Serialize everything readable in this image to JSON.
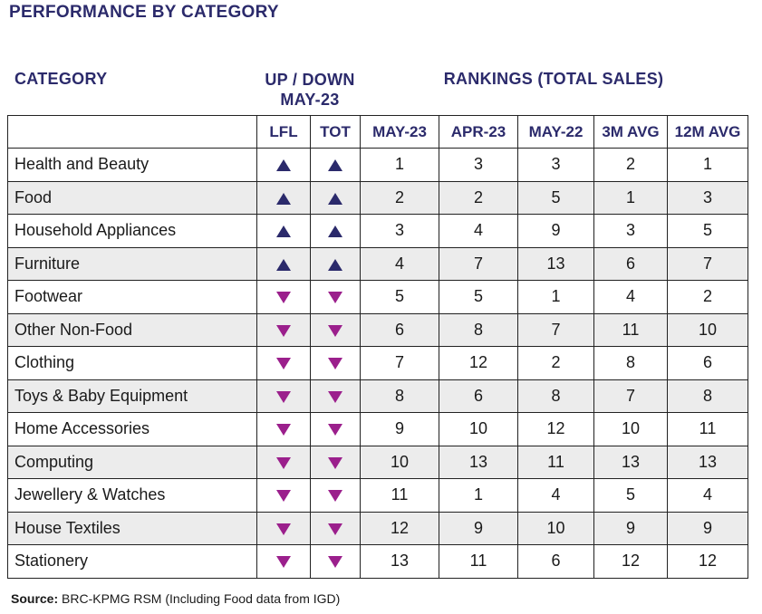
{
  "title": "PERFORMANCE BY CATEGORY",
  "headers": {
    "category": "CATEGORY",
    "up_down_line1": "UP / DOWN",
    "up_down_line2": "MAY-23",
    "rankings": "RANKINGS (TOTAL SALES)"
  },
  "columns": [
    "",
    "LFL",
    "TOT",
    "MAY-23",
    "APR-23",
    "MAY-22",
    "3M AVG",
    "12M AVG"
  ],
  "colors": {
    "up": "#2b2a6b",
    "down": "#9b1f8c",
    "header_text": "#2b2a6b",
    "row_shade": "#ececec"
  },
  "rows": [
    {
      "category": "Health and Beauty",
      "lfl": "up",
      "tot": "up",
      "may23": "1",
      "apr23": "3",
      "may22": "3",
      "avg3m": "2",
      "avg12m": "1"
    },
    {
      "category": "Food",
      "lfl": "up",
      "tot": "up",
      "may23": "2",
      "apr23": "2",
      "may22": "5",
      "avg3m": "1",
      "avg12m": "3"
    },
    {
      "category": "Household Appliances",
      "lfl": "up",
      "tot": "up",
      "may23": "3",
      "apr23": "4",
      "may22": "9",
      "avg3m": "3",
      "avg12m": "5"
    },
    {
      "category": "Furniture",
      "lfl": "up",
      "tot": "up",
      "may23": "4",
      "apr23": "7",
      "may22": "13",
      "avg3m": "6",
      "avg12m": "7"
    },
    {
      "category": "Footwear",
      "lfl": "down",
      "tot": "down",
      "may23": "5",
      "apr23": "5",
      "may22": "1",
      "avg3m": "4",
      "avg12m": "2"
    },
    {
      "category": "Other Non-Food",
      "lfl": "down",
      "tot": "down",
      "may23": "6",
      "apr23": "8",
      "may22": "7",
      "avg3m": "11",
      "avg12m": "10"
    },
    {
      "category": "Clothing",
      "lfl": "down",
      "tot": "down",
      "may23": "7",
      "apr23": "12",
      "may22": "2",
      "avg3m": "8",
      "avg12m": "6"
    },
    {
      "category": "Toys & Baby Equipment",
      "lfl": "down",
      "tot": "down",
      "may23": "8",
      "apr23": "6",
      "may22": "8",
      "avg3m": "7",
      "avg12m": "8"
    },
    {
      "category": "Home Accessories",
      "lfl": "down",
      "tot": "down",
      "may23": "9",
      "apr23": "10",
      "may22": "12",
      "avg3m": "10",
      "avg12m": "11"
    },
    {
      "category": "Computing",
      "lfl": "down",
      "tot": "down",
      "may23": "10",
      "apr23": "13",
      "may22": "11",
      "avg3m": "13",
      "avg12m": "13"
    },
    {
      "category": "Jewellery & Watches",
      "lfl": "down",
      "tot": "down",
      "may23": "11",
      "apr23": "1",
      "may22": "4",
      "avg3m": "5",
      "avg12m": "4"
    },
    {
      "category": "House Textiles",
      "lfl": "down",
      "tot": "down",
      "may23": "12",
      "apr23": "9",
      "may22": "10",
      "avg3m": "9",
      "avg12m": "9"
    },
    {
      "category": "Stationery",
      "lfl": "down",
      "tot": "down",
      "may23": "13",
      "apr23": "11",
      "may22": "6",
      "avg3m": "12",
      "avg12m": "12"
    }
  ],
  "source": {
    "label": "Source:",
    "text": " BRC-KPMG RSM (Including Food data from IGD)"
  }
}
